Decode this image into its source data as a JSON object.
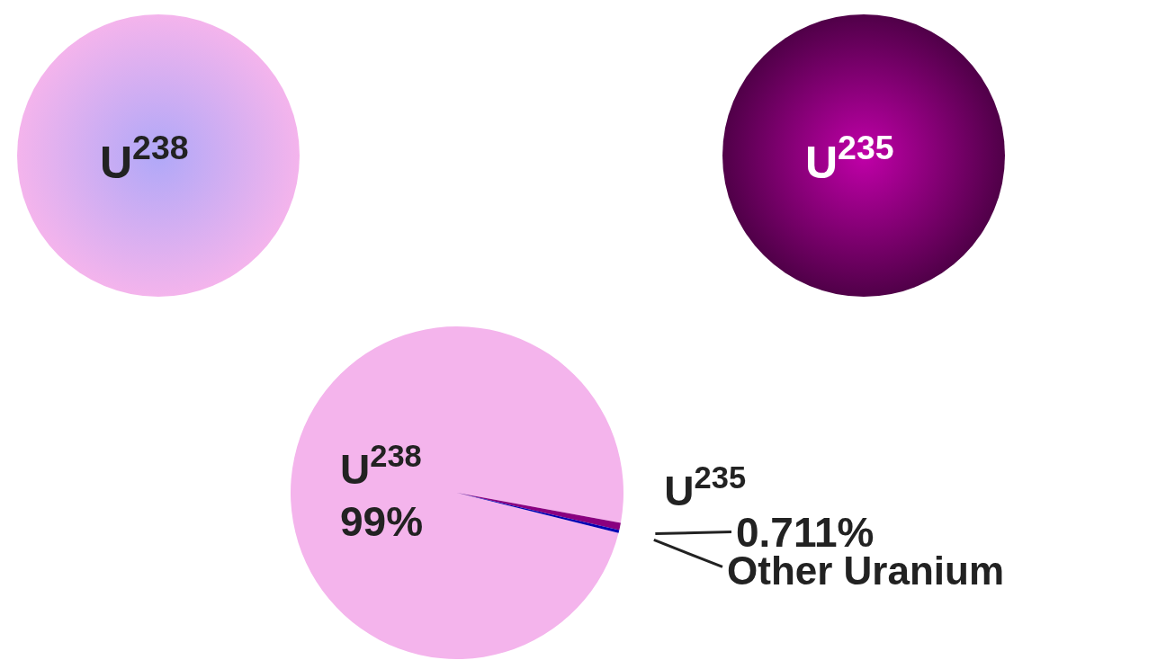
{
  "chart_data": {
    "type": "pie",
    "categories": [
      "U$^{238}$",
      "U$^{235}$",
      "Other Uranium"
    ],
    "values": [
      99,
      0.711,
      0.289
    ],
    "colors": [
      "#f4b4ec",
      "#8a0080",
      "#0000b4"
    ],
    "value_labels": [
      "99%",
      "0.711%",
      null
    ],
    "annotations": [
      "U$^{238}$",
      "U$^{235}$"
    ]
  }
}
